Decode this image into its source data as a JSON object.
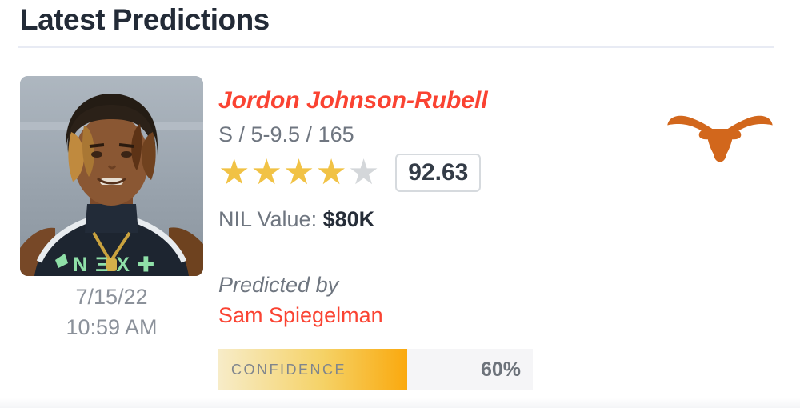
{
  "header": {
    "title": "Latest Predictions"
  },
  "card": {
    "date": "7/15/22",
    "time": "10:59 AM",
    "player": {
      "name": "Jordon Johnson-Rubell",
      "meta": "S / 5-9.5 / 165",
      "stars": 4,
      "max_stars": 5,
      "rating": "92.63"
    },
    "nil": {
      "label": "NIL Value: ",
      "value": "$80K"
    },
    "predicted_by_label": "Predicted by",
    "predictor": "Sam Spiegelman",
    "confidence": {
      "label": "CONFIDENCE",
      "value": "60%",
      "percent": 60
    }
  },
  "photo": {
    "jersey_text": "NΞX✚"
  },
  "icons": {
    "star": "★",
    "team_logo": "texas-longhorns-icon"
  },
  "colors": {
    "accent_red": "#fa4332",
    "star_gold": "#f1c245",
    "star_gray": "#d4d7da",
    "confidence_gold": "#faa90e",
    "team_orange": "#d2671c",
    "title_navy": "#232b37",
    "muted_gray": "#6f7680"
  }
}
